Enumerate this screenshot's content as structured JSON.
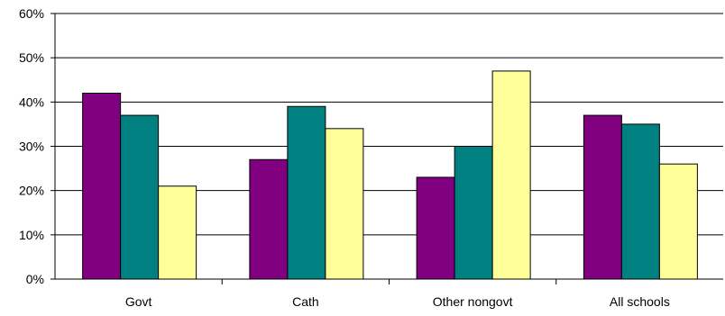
{
  "chart_data": {
    "type": "bar",
    "categories": [
      "Govt",
      "Cath",
      "Other nongovt",
      "All schools"
    ],
    "series": [
      {
        "color": "#800080",
        "values": [
          42,
          27,
          23,
          37
        ]
      },
      {
        "color": "#008080",
        "values": [
          37,
          39,
          30,
          35
        ]
      },
      {
        "color": "#FFFF99",
        "values": [
          21,
          34,
          47,
          26
        ]
      }
    ],
    "y_ticks": [
      "0%",
      "10%",
      "20%",
      "30%",
      "40%",
      "50%",
      "60%"
    ],
    "ylim": [
      0,
      60
    ],
    "grid": true,
    "legend": "none"
  }
}
